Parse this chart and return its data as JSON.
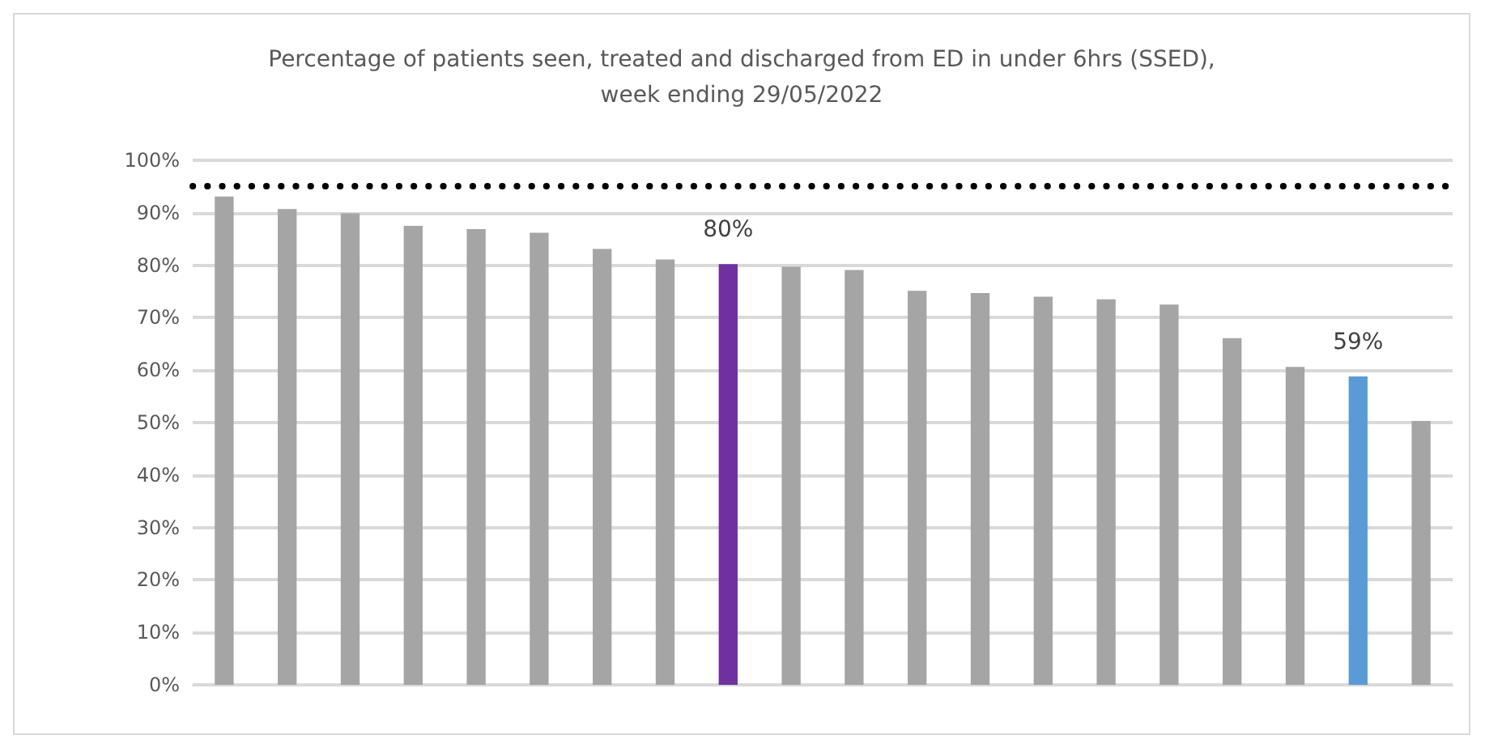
{
  "chart_data": {
    "type": "bar",
    "title": "Percentage of patients seen, treated and discharged from ED in under 6hrs (SSED),\nweek ending 29/05/2022",
    "categories": [
      null,
      null,
      null,
      null,
      null,
      null,
      null,
      null,
      null,
      null,
      null,
      null,
      null,
      null,
      null,
      null,
      null,
      null,
      null,
      null
    ],
    "values": [
      93.1,
      90.7,
      89.9,
      87.5,
      86.9,
      86.2,
      83.1,
      81.1,
      80.2,
      79.7,
      79.1,
      75.1,
      74.7,
      74.0,
      73.5,
      72.5,
      66.1,
      60.6,
      58.8,
      50.3
    ],
    "colors": [
      "#a5a5a5",
      "#a5a5a5",
      "#a5a5a5",
      "#a5a5a5",
      "#a5a5a5",
      "#a5a5a5",
      "#a5a5a5",
      "#a5a5a5",
      "#7030a0",
      "#a5a5a5",
      "#a5a5a5",
      "#a5a5a5",
      "#a5a5a5",
      "#a5a5a5",
      "#a5a5a5",
      "#a5a5a5",
      "#a5a5a5",
      "#a5a5a5",
      "#5b9bd5",
      "#a5a5a5"
    ],
    "value_labels": [
      null,
      null,
      null,
      null,
      null,
      null,
      null,
      null,
      "80%",
      null,
      null,
      null,
      null,
      null,
      null,
      null,
      null,
      null,
      "59%",
      null
    ],
    "ylim": [
      0,
      100
    ],
    "yticks": [
      {
        "value": 0,
        "label": "0%"
      },
      {
        "value": 10,
        "label": "10%"
      },
      {
        "value": 20,
        "label": "20%"
      },
      {
        "value": 30,
        "label": "30%"
      },
      {
        "value": 40,
        "label": "40%"
      },
      {
        "value": 50,
        "label": "50%"
      },
      {
        "value": 60,
        "label": "60%"
      },
      {
        "value": 70,
        "label": "70%"
      },
      {
        "value": 80,
        "label": "80%"
      },
      {
        "value": 90,
        "label": "90%"
      },
      {
        "value": 100,
        "label": "100%"
      }
    ],
    "ref_lines": [
      {
        "axis": "y",
        "value": 95,
        "color": "#000000",
        "line_style": "dotted"
      }
    ],
    "grid": "y"
  }
}
